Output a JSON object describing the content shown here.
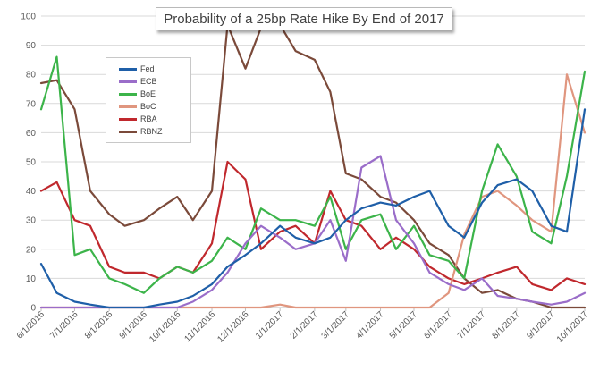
{
  "chart_data": {
    "type": "line",
    "title": "Probability of a 25bp Rate Hike By End of 2017",
    "ylim": [
      0,
      100
    ],
    "yticks": [
      "0",
      "10",
      "20",
      "30",
      "40",
      "50",
      "60",
      "70",
      "80",
      "90",
      "100"
    ],
    "xticks": [
      "6/1/2016",
      "7/1/2016",
      "8/1/2016",
      "9/1/2016",
      "10/1/2016",
      "11/1/2016",
      "12/1/2016",
      "1/1/2017",
      "2/1/2017",
      "3/1/2017",
      "4/1/2017",
      "5/1/2017",
      "6/1/2017",
      "7/1/2017",
      "8/1/2017",
      "9/1/2017",
      "10/1/2017"
    ],
    "x": [
      "6/1/2016",
      "6/15/2016",
      "7/1/2016",
      "7/15/2016",
      "8/1/2016",
      "8/15/2016",
      "9/1/2016",
      "9/15/2016",
      "10/1/2016",
      "10/15/2016",
      "11/1/2016",
      "11/15/2016",
      "12/1/2016",
      "12/15/2016",
      "1/1/2017",
      "1/15/2017",
      "2/1/2017",
      "2/15/2017",
      "3/1/2017",
      "3/15/2017",
      "4/1/2017",
      "4/15/2017",
      "5/1/2017",
      "5/15/2017",
      "6/1/2017",
      "6/15/2017",
      "7/1/2017",
      "7/15/2017",
      "8/1/2017",
      "8/15/2017",
      "9/1/2017",
      "9/15/2017",
      "10/1/2017"
    ],
    "grid": true,
    "legend_position": "upper-left",
    "series": [
      {
        "name": "Fed",
        "color": "#1f5fa8",
        "values": [
          15,
          5,
          2,
          1,
          0,
          0,
          0,
          1,
          2,
          4,
          8,
          14,
          18,
          22,
          28,
          24,
          22,
          24,
          30,
          34,
          36,
          35,
          38,
          40,
          28,
          24,
          36,
          42,
          44,
          40,
          28,
          26,
          68
        ]
      },
      {
        "name": "ECB",
        "color": "#9a6dc9",
        "values": [
          0,
          0,
          0,
          0,
          0,
          0,
          0,
          0,
          0,
          2,
          6,
          12,
          22,
          28,
          24,
          20,
          22,
          30,
          16,
          48,
          52,
          30,
          22,
          12,
          8,
          6,
          10,
          4,
          3,
          2,
          1,
          2,
          5
        ]
      },
      {
        "name": "BoE",
        "color": "#3cb44a",
        "values": [
          68,
          86,
          18,
          20,
          10,
          8,
          5,
          10,
          14,
          12,
          16,
          24,
          20,
          34,
          30,
          30,
          28,
          38,
          20,
          30,
          32,
          20,
          28,
          18,
          16,
          10,
          40,
          56,
          45,
          26,
          22,
          45,
          81
        ]
      },
      {
        "name": "BoC",
        "color": "#e0967f",
        "values": [
          0,
          0,
          0,
          0,
          0,
          0,
          0,
          0,
          0,
          0,
          0,
          0,
          0,
          0,
          1,
          0,
          0,
          0,
          0,
          0,
          0,
          0,
          0,
          0,
          5,
          25,
          38,
          40,
          35,
          30,
          26,
          80,
          60
        ]
      },
      {
        "name": "RBA",
        "color": "#c0282d",
        "values": [
          40,
          43,
          30,
          28,
          14,
          12,
          12,
          10,
          14,
          12,
          22,
          50,
          44,
          20,
          26,
          28,
          22,
          40,
          30,
          28,
          20,
          24,
          20,
          14,
          10,
          8,
          10,
          12,
          14,
          8,
          6,
          10,
          8
        ]
      },
      {
        "name": "RBNZ",
        "color": "#7b4a3a",
        "values": [
          77,
          78,
          68,
          40,
          32,
          28,
          30,
          34,
          38,
          30,
          40,
          97,
          82,
          96,
          97,
          88,
          85,
          74,
          46,
          44,
          38,
          36,
          30,
          22,
          18,
          10,
          5,
          6,
          3,
          2,
          0,
          0,
          0
        ]
      }
    ]
  }
}
